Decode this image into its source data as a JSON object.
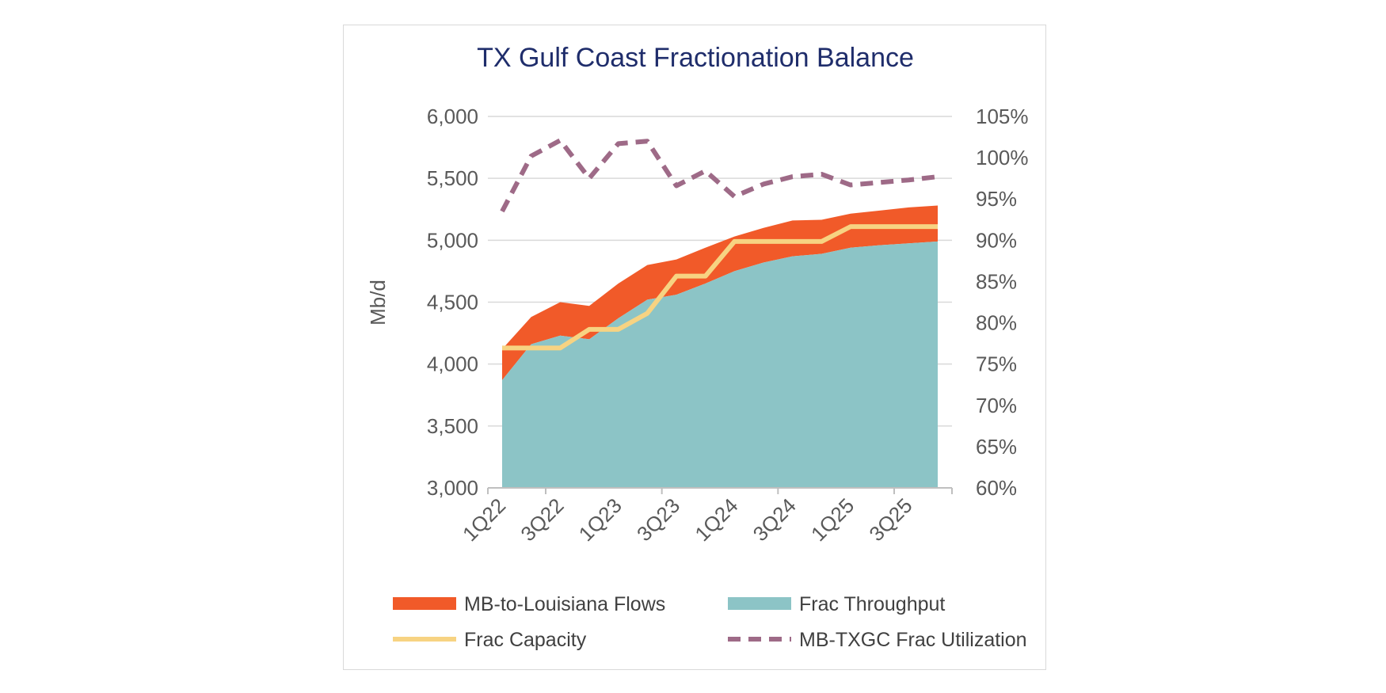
{
  "chart_data": {
    "type": "area",
    "title": "TX Gulf Coast Fractionation Balance",
    "ylabel": "Mb/d",
    "y2label": "",
    "x": [
      "1Q22",
      "2Q22",
      "3Q22",
      "4Q22",
      "1Q23",
      "2Q23",
      "3Q23",
      "4Q23",
      "1Q24",
      "2Q24",
      "3Q24",
      "4Q24",
      "1Q25",
      "2Q25",
      "3Q25",
      "4Q25"
    ],
    "x_tick_labels": [
      "1Q22",
      "3Q22",
      "1Q23",
      "3Q23",
      "1Q24",
      "3Q24",
      "1Q25",
      "3Q25"
    ],
    "ylim": [
      3000,
      6000
    ],
    "y_ticks": [
      "3,000",
      "3,500",
      "4,000",
      "4,500",
      "5,000",
      "5,500",
      "6,000"
    ],
    "y2lim": [
      60,
      105
    ],
    "y2_ticks": [
      "60%",
      "65%",
      "70%",
      "75%",
      "80%",
      "85%",
      "90%",
      "95%",
      "100%",
      "105%"
    ],
    "grid": true,
    "legend_placement": "bottom",
    "series": [
      {
        "name": "Frac Throughput",
        "kind": "area",
        "axis": "left",
        "color": "#8cc4c6",
        "values": [
          3870,
          4160,
          4230,
          4200,
          4370,
          4520,
          4560,
          4650,
          4750,
          4820,
          4870,
          4890,
          4940,
          4960,
          4975,
          4990
        ]
      },
      {
        "name": "MB-to-Louisiana Flows",
        "kind": "stacked-area",
        "axis": "left",
        "color": "#f15a29",
        "values": [
          250,
          220,
          270,
          270,
          280,
          280,
          285,
          290,
          280,
          280,
          290,
          275,
          275,
          280,
          290,
          290
        ]
      },
      {
        "name": "Frac Capacity",
        "kind": "line",
        "axis": "left",
        "color": "#f7d382",
        "values": [
          4130,
          4130,
          4130,
          4280,
          4280,
          4410,
          4710,
          4710,
          4990,
          4990,
          4990,
          4990,
          5110,
          5110,
          5110,
          5110
        ]
      },
      {
        "name": "MB-TXGC Frac Utilization",
        "kind": "dashed-line",
        "axis": "right",
        "color": "#9e6a87",
        "values": [
          93.5,
          100.2,
          102.1,
          97.5,
          101.7,
          102.0,
          96.6,
          98.4,
          95.3,
          96.8,
          97.7,
          98.0,
          96.7,
          97.0,
          97.3,
          97.7
        ]
      }
    ]
  }
}
